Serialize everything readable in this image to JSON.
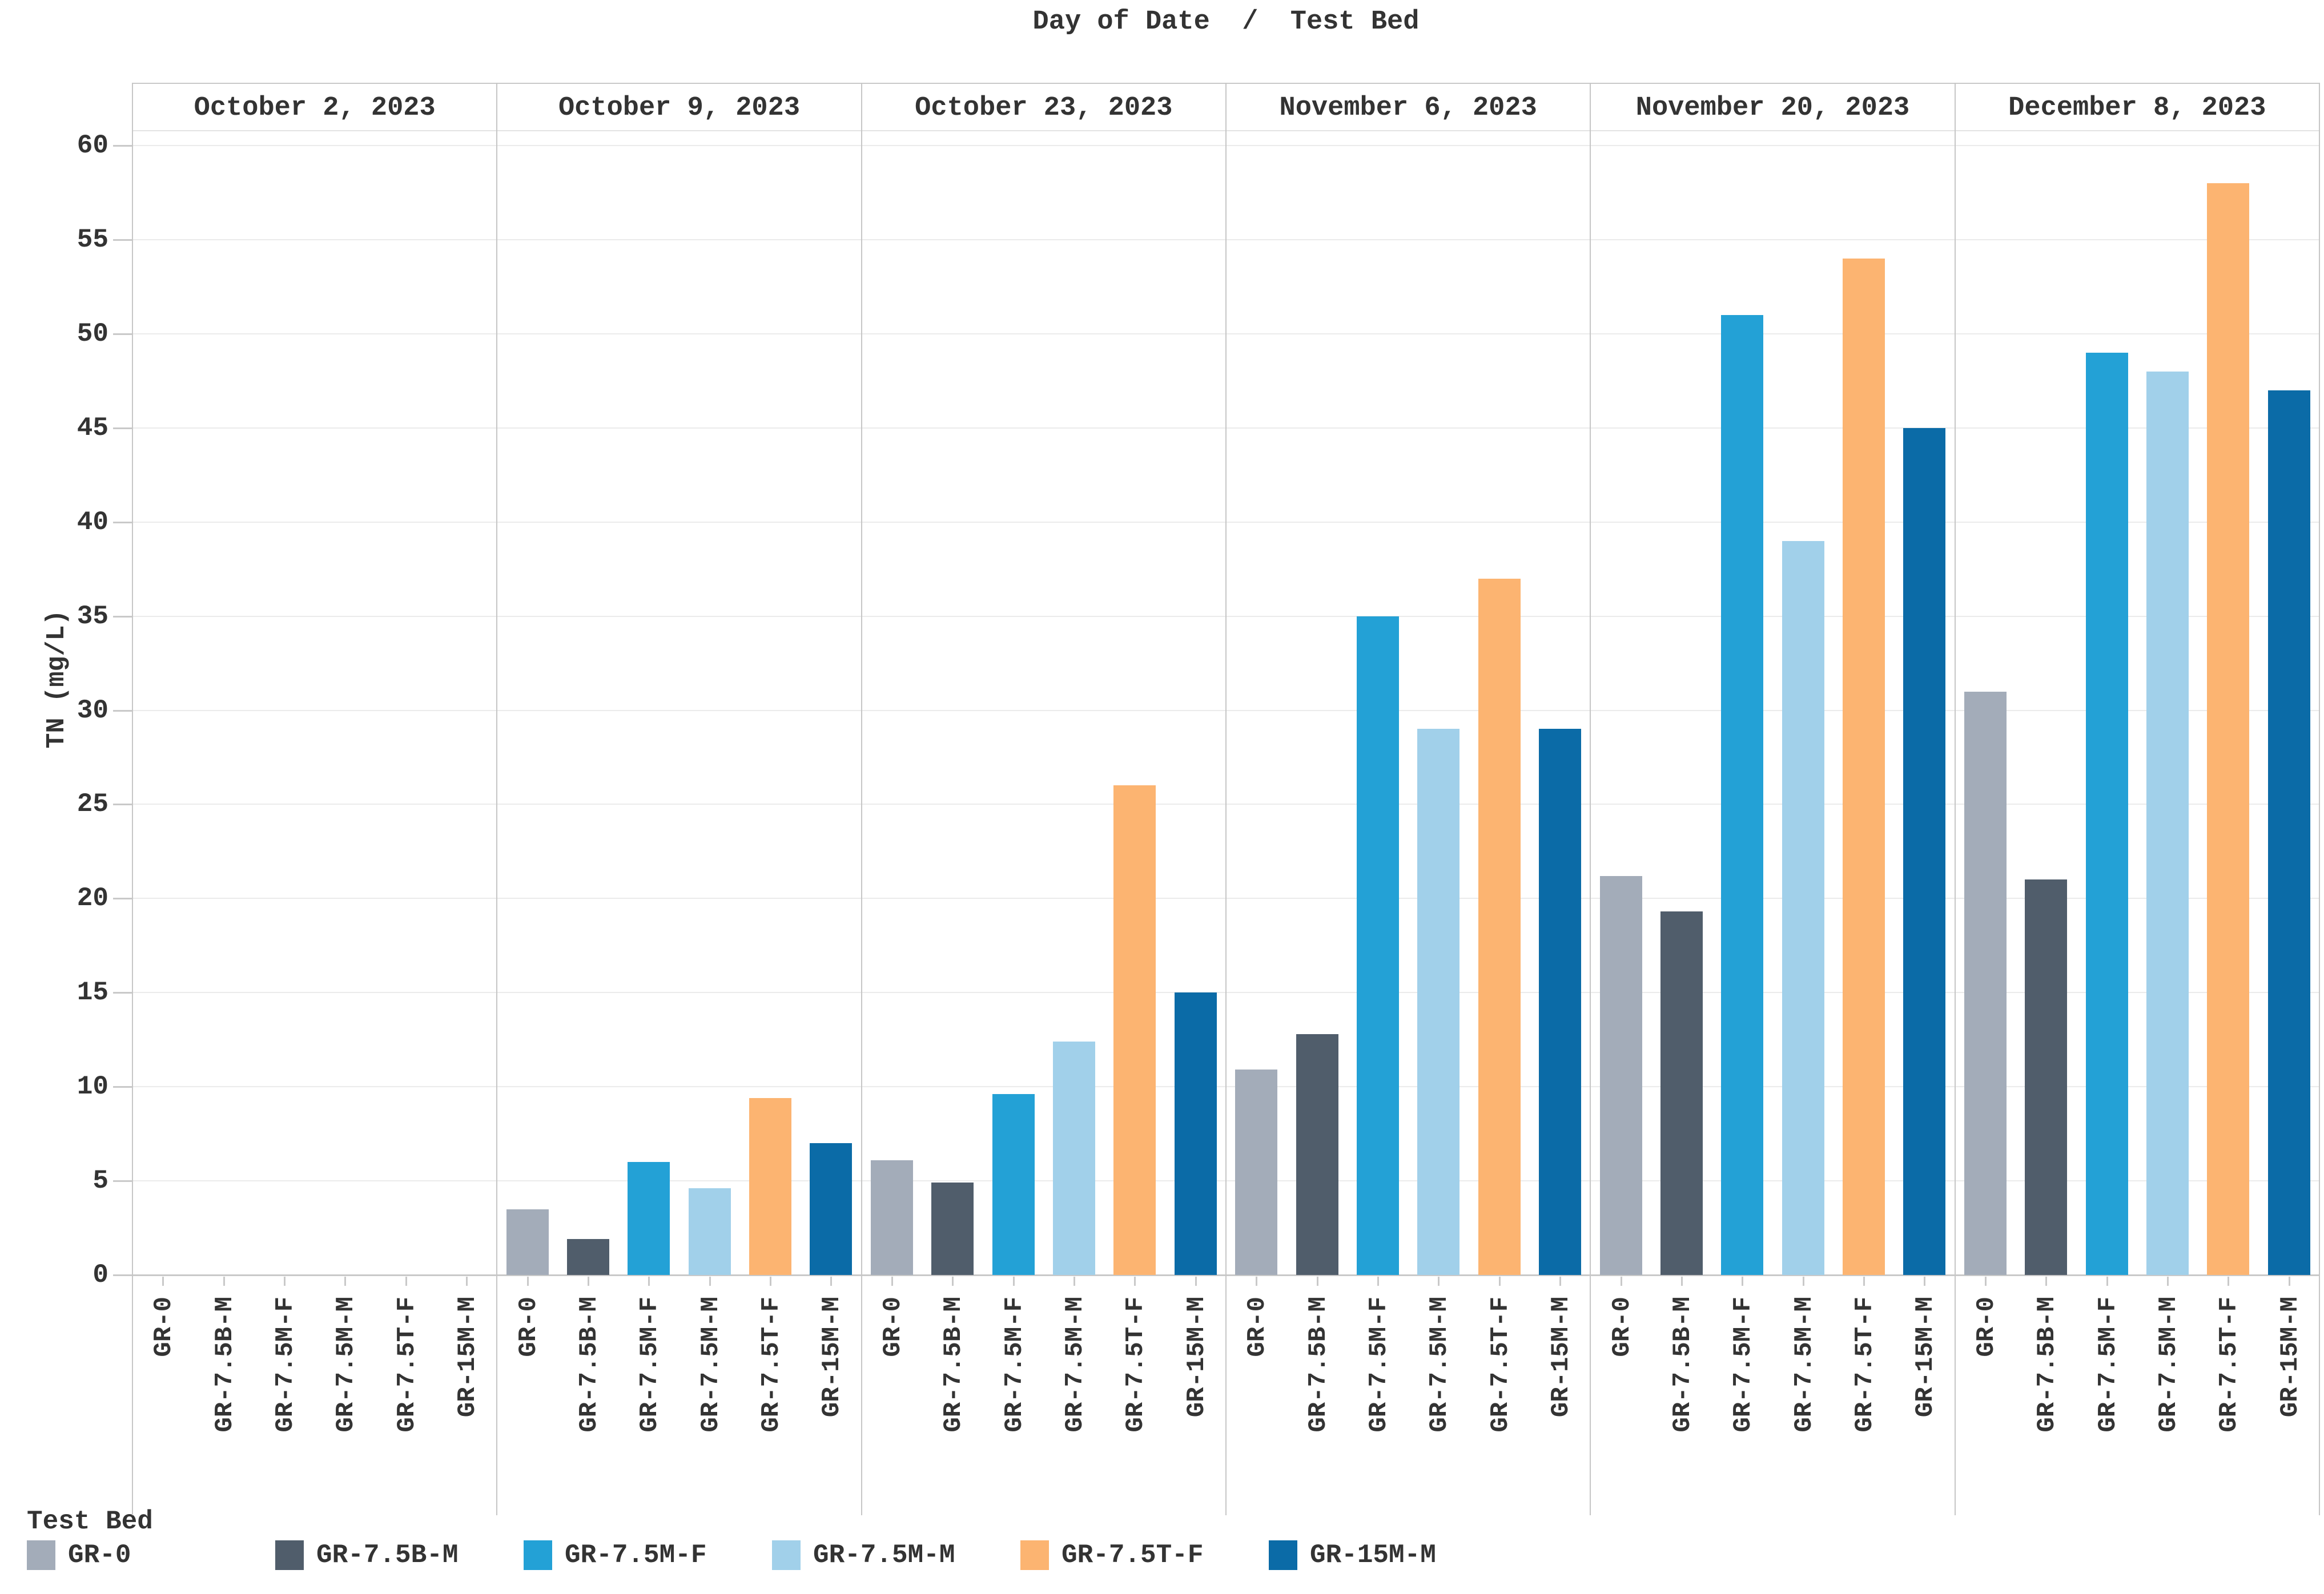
{
  "chart_data": {
    "type": "bar",
    "title": "Day of Date  /  Test Bed",
    "ylabel": "TN (mg/L)",
    "ylim": [
      0,
      60
    ],
    "y_tick_step": 5,
    "y_tick_labels": [
      "0",
      "5",
      "10",
      "15",
      "20",
      "25",
      "30",
      "35",
      "40",
      "45",
      "50",
      "55",
      "60"
    ],
    "grid": true,
    "legend_position": "bottom-left",
    "panels": [
      "October 2, 2023",
      "October 9, 2023",
      "October 23, 2023",
      "November 6, 2023",
      "November 20, 2023",
      "December 8, 2023"
    ],
    "categories": [
      "GR-0",
      "GR-7.5B-M",
      "GR-7.5M-F",
      "GR-7.5M-M",
      "GR-7.5T-F",
      "GR-15M-M"
    ],
    "series": [
      {
        "panel": "October 2, 2023",
        "values": [
          0,
          0,
          0,
          0,
          0,
          0
        ]
      },
      {
        "panel": "October 9, 2023",
        "values": [
          3.5,
          1.9,
          6.0,
          4.6,
          9.4,
          7.0
        ]
      },
      {
        "panel": "October 23, 2023",
        "values": [
          6.1,
          4.9,
          9.6,
          12.4,
          26,
          15
        ]
      },
      {
        "panel": "November 6, 2023",
        "values": [
          10.9,
          12.8,
          35,
          29,
          37,
          29
        ]
      },
      {
        "panel": "November 20, 2023",
        "values": [
          21.2,
          19.3,
          51,
          39,
          54,
          45
        ]
      },
      {
        "panel": "December 8, 2023",
        "values": [
          31,
          21,
          49,
          48,
          58,
          47
        ]
      }
    ],
    "colors": [
      "#a3acb9",
      "#505d6b",
      "#23a1d6",
      "#a1d0ea",
      "#fcb471",
      "#0b6ba7"
    ]
  },
  "legend": {
    "title": "Test Bed",
    "entries": [
      {
        "label": "GR-0",
        "color": "#a3acb9"
      },
      {
        "label": "GR-7.5B-M",
        "color": "#505d6b"
      },
      {
        "label": "GR-7.5M-F",
        "color": "#23a1d6"
      },
      {
        "label": "GR-7.5M-M",
        "color": "#a1d0ea"
      },
      {
        "label": "GR-7.5T-F",
        "color": "#fcb471"
      },
      {
        "label": "GR-15M-M",
        "color": "#0b6ba7"
      }
    ]
  }
}
